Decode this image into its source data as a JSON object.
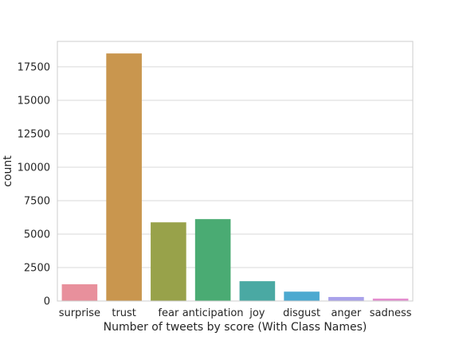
{
  "chart_data": {
    "type": "bar",
    "categories": [
      "surprise",
      "trust",
      "fear",
      "anticipation",
      "joy",
      "disgust",
      "anger",
      "sadness"
    ],
    "values": [
      1250,
      18500,
      5880,
      6120,
      1480,
      700,
      300,
      180
    ],
    "colors": [
      "#e8909c",
      "#c9964e",
      "#98a24a",
      "#4aab73",
      "#4aa9a3",
      "#4ca9d0",
      "#a9a2ea",
      "#e48ecf"
    ],
    "xlabel": "Number of tweets by score (With Class Names)",
    "ylabel": "count",
    "ylim": [
      0,
      19400
    ],
    "yticks": [
      0,
      2500,
      5000,
      7500,
      10000,
      12500,
      15000,
      17500
    ],
    "ytick_labels": [
      "0",
      "2500",
      "5000",
      "7500",
      "10000",
      "12500",
      "15000",
      "17500"
    ],
    "grid": true
  }
}
